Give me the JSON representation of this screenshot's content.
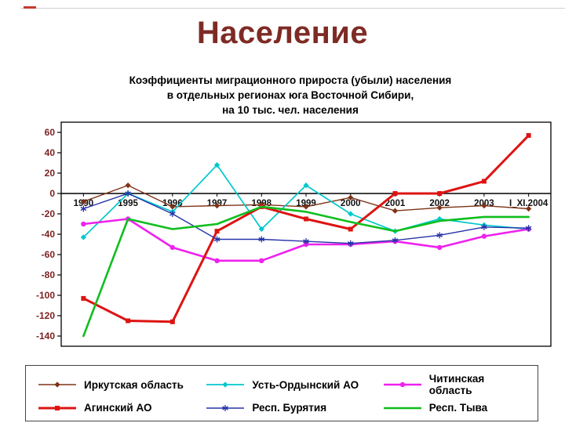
{
  "slide": {
    "title": "Население"
  },
  "chart_data": {
    "type": "line",
    "title_lines": [
      "Коэффициенты миграционного прироста (убыли) населения",
      "в отдельных регионах юга Восточной Сибири,",
      "на 10 тыс. чел. населения"
    ],
    "categories": [
      "1990",
      "1995",
      "1996",
      "1997",
      "1998",
      "1999",
      "2000",
      "2001",
      "2002",
      "2003",
      "I_XI.2004"
    ],
    "y_ticks": [
      60,
      40,
      20,
      0,
      -20,
      -40,
      -60,
      -80,
      -100,
      -120,
      -140
    ],
    "ylim": [
      -150,
      70
    ],
    "grid": false,
    "legend_position": "bottom",
    "series": [
      {
        "name": "Иркутская область",
        "color": "#7e3317",
        "marker": "diamond",
        "width": 1.4,
        "values": [
          -8,
          8,
          -13,
          -12,
          -11,
          -13,
          -4,
          -17,
          -14,
          -12,
          -15
        ]
      },
      {
        "name": "Усть-Ордынский АО",
        "color": "#00c8cc",
        "marker": "diamond",
        "width": 1.7,
        "values": [
          -43,
          0,
          -18,
          28,
          -35,
          8,
          -20,
          -37,
          -25,
          -31,
          -35
        ]
      },
      {
        "name": "Читинская область",
        "color": "#ee22ee",
        "marker": "circle",
        "width": 2.6,
        "values": [
          -30,
          -25,
          -53,
          -66,
          -66,
          -50,
          -50,
          -47,
          -53,
          -42,
          -35
        ]
      },
      {
        "name": "Агинский АО",
        "color": "#dd1412",
        "marker": "square",
        "width": 3.0,
        "values": [
          -103,
          -125,
          -126,
          -37,
          -13,
          -25,
          -35,
          0,
          0,
          12,
          57
        ]
      },
      {
        "name": "Респ. Бурятия",
        "color": "#2633a8",
        "marker": "star",
        "width": 1.4,
        "values": [
          -15,
          0,
          -20,
          -45,
          -45,
          -47,
          -49,
          -46,
          -41,
          -33,
          -34
        ]
      },
      {
        "name": "Респ. Тыва",
        "color": "#0fbe1e",
        "marker": "none",
        "width": 2.6,
        "values": [
          -140,
          -25,
          -35,
          -30,
          -13,
          -18,
          -28,
          -37,
          -27,
          -23,
          -23
        ]
      }
    ]
  }
}
